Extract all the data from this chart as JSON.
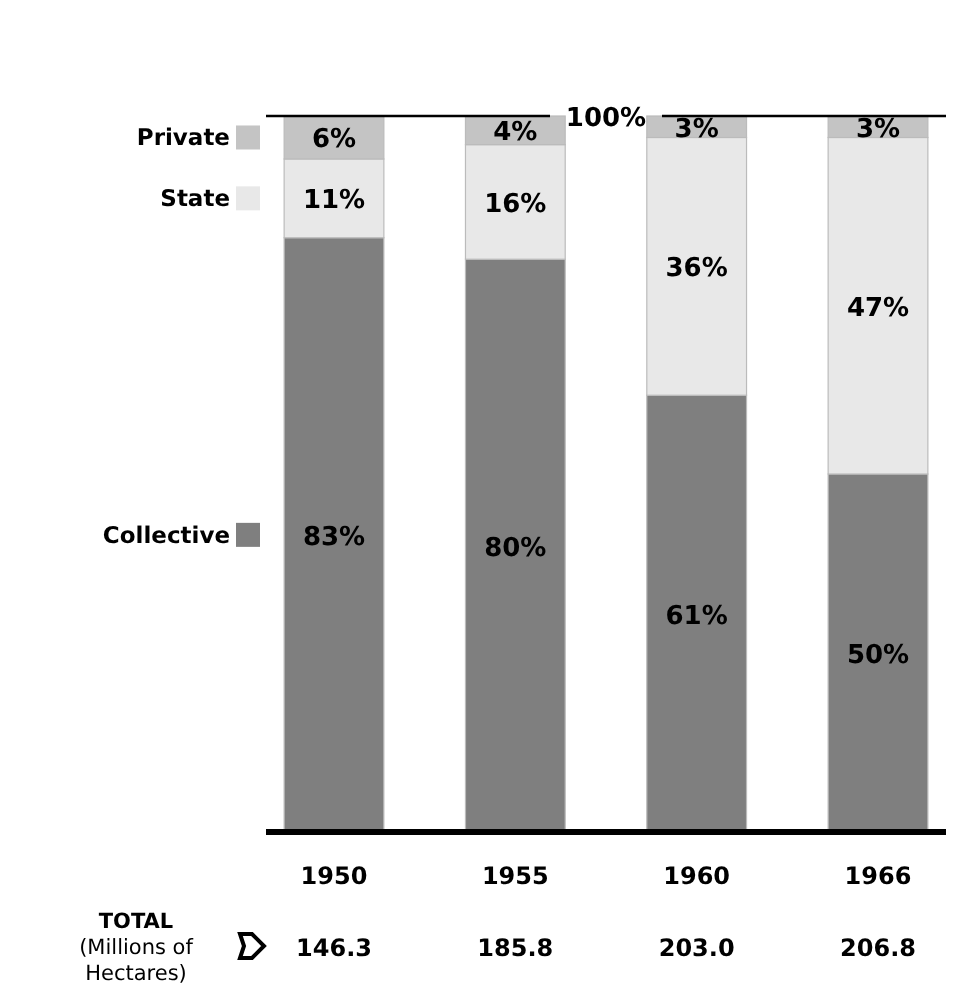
{
  "chart_data": {
    "type": "bar",
    "stacked": true,
    "categories": [
      "1950",
      "1955",
      "1960",
      "1966"
    ],
    "ylim": [
      0,
      100
    ],
    "tick_labels": "x",
    "legend": "left",
    "series": [
      {
        "name": "Collective",
        "color": "#7f7f7f",
        "values": [
          83,
          80,
          61,
          50
        ],
        "value_labels": [
          "83%",
          "80%",
          "61%",
          "50%"
        ]
      },
      {
        "name": "State",
        "color": "#e8e8e8",
        "values": [
          11,
          16,
          36,
          47
        ],
        "value_labels": [
          "11%",
          "16%",
          "36%",
          "47%"
        ]
      },
      {
        "name": "Private",
        "color": "#c4c4c4",
        "values": [
          6,
          4,
          3,
          3
        ],
        "value_labels": [
          "6%",
          "4%",
          "3%",
          "3%"
        ]
      }
    ],
    "ref_lines": [
      {
        "axis": "y",
        "value": 100,
        "label": "100%"
      }
    ],
    "annotations": [
      "TOTAL\n(Millions of\nHectares)",
      "146.3",
      "185.8",
      "203.0",
      "206.8"
    ]
  }
}
